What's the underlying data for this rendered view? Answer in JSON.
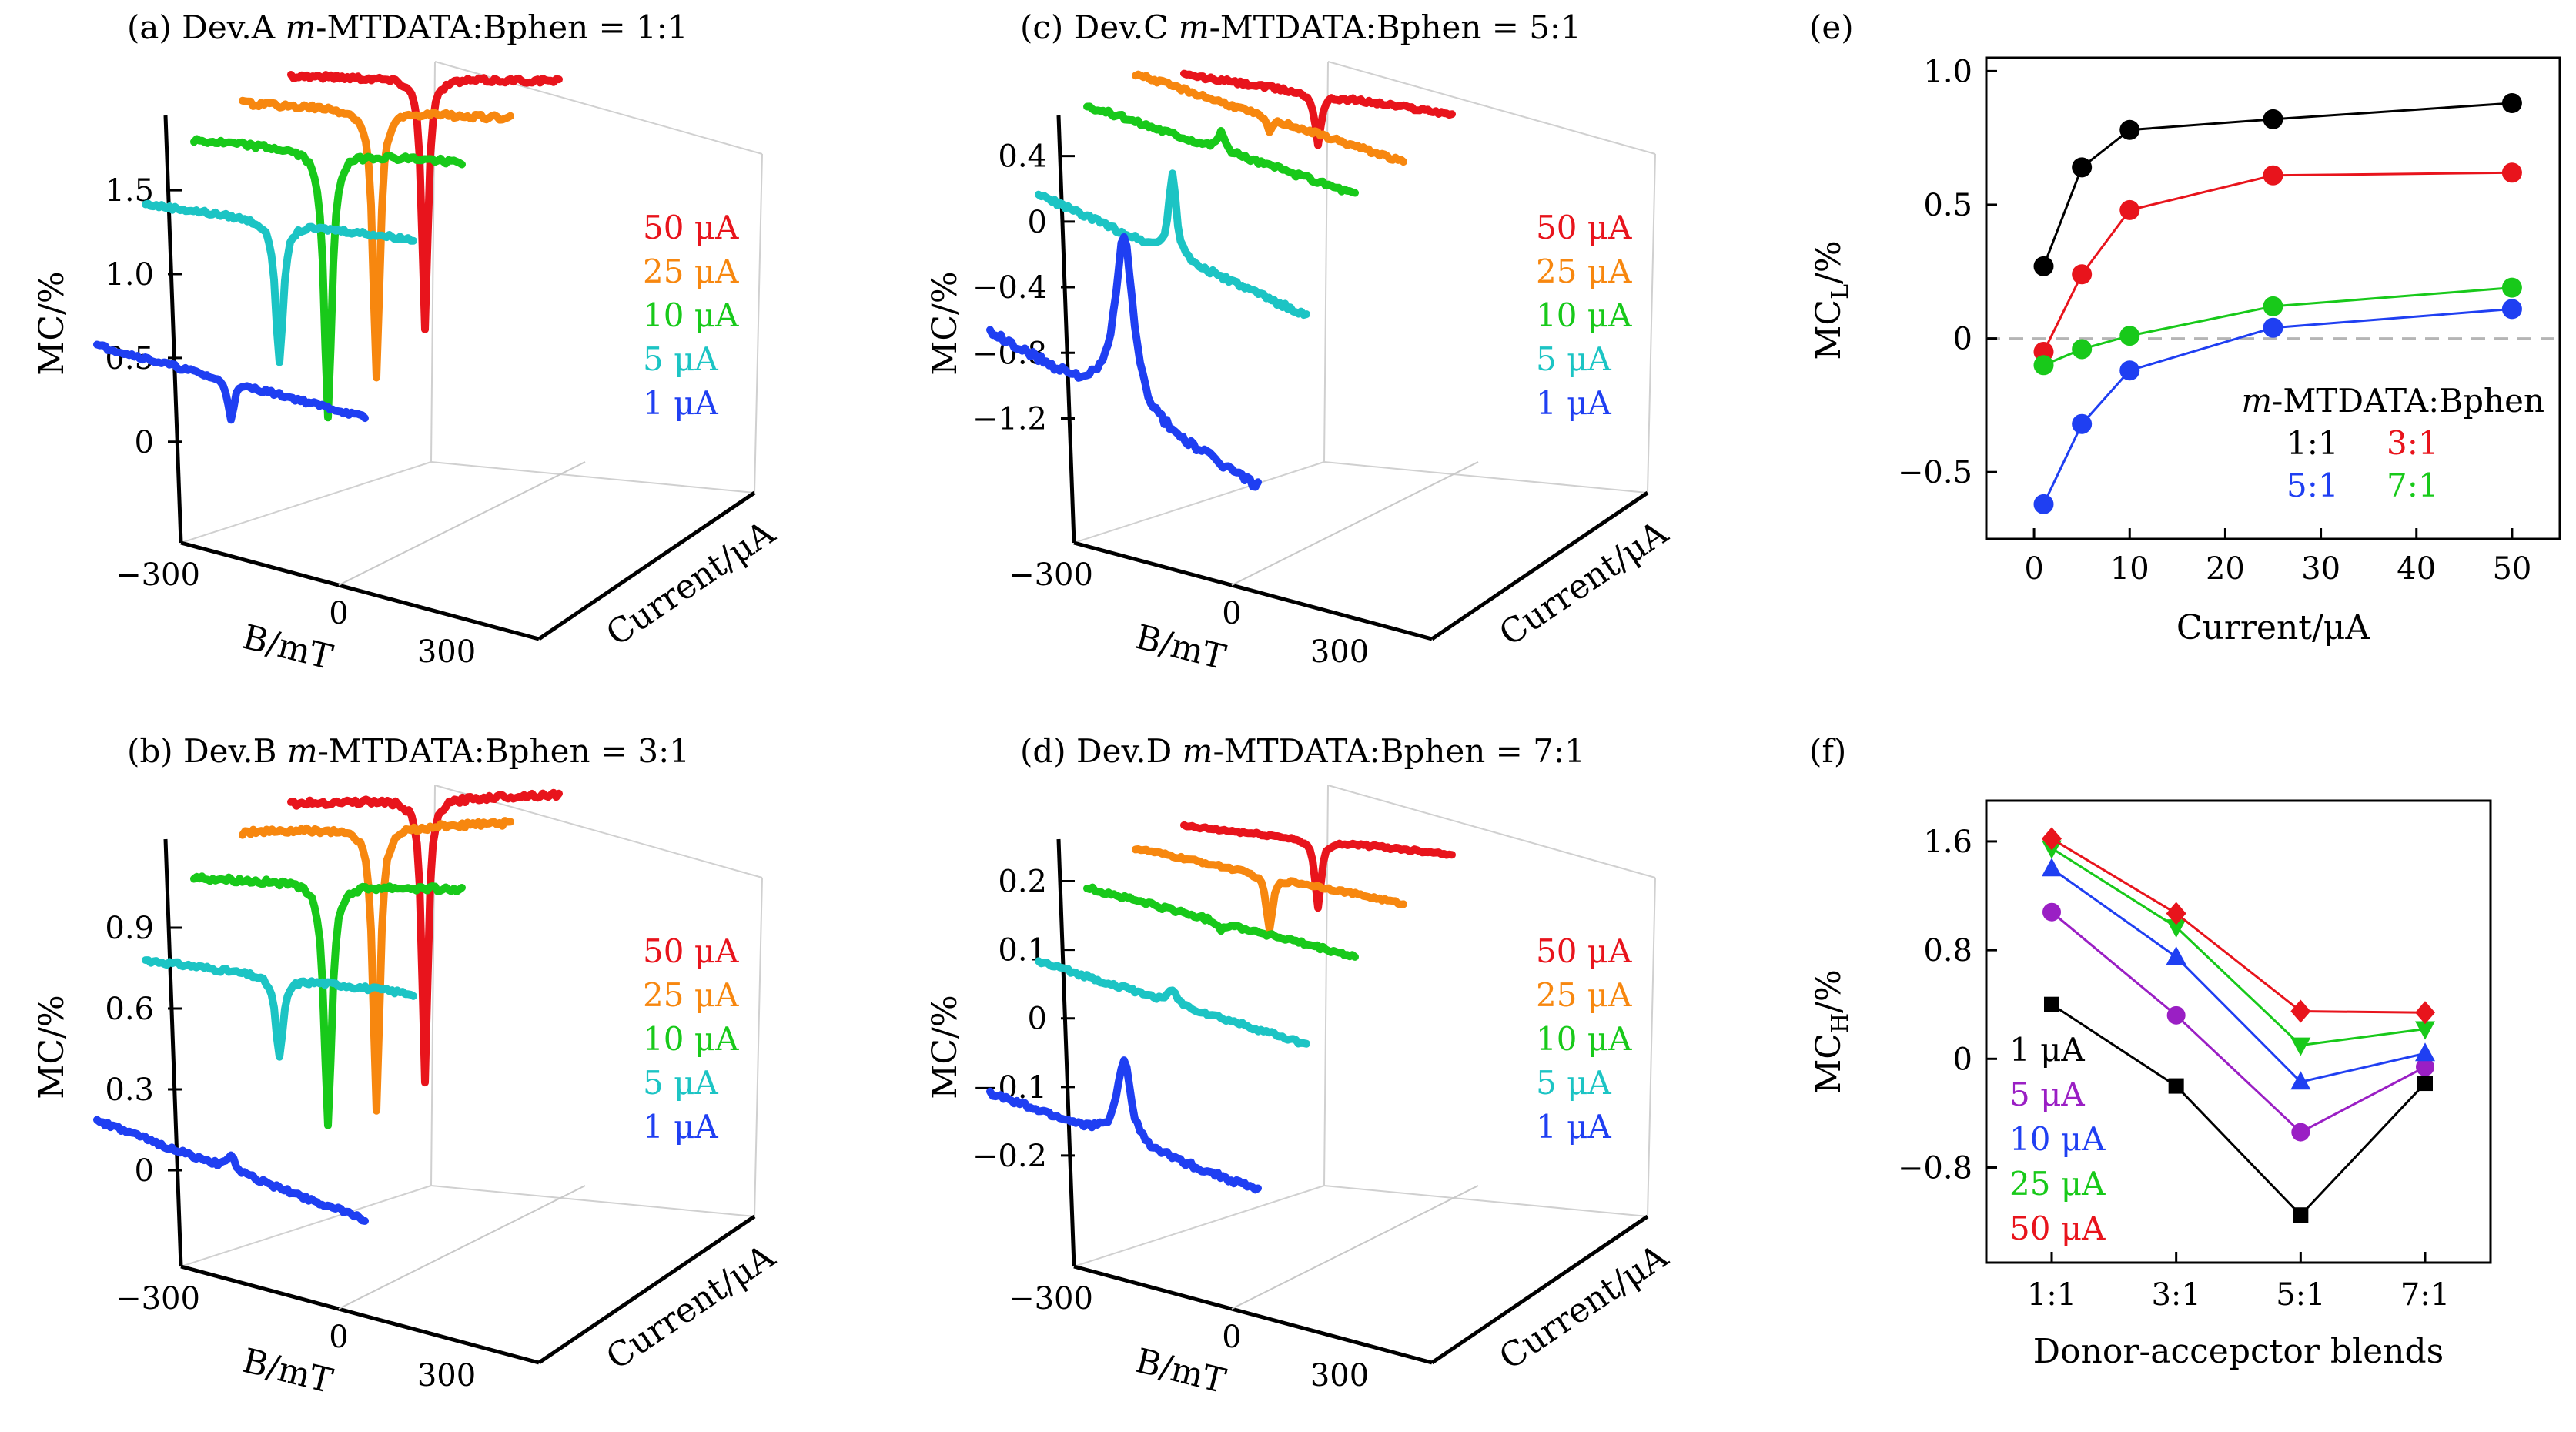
{
  "figure": "MC vs B (3D waterfall) and MC_L / MC_H summaries",
  "colors": {
    "red": "#e8141c",
    "orange": "#f7870f",
    "green": "#18c91a",
    "cyan": "#1cc4c4",
    "blue": "#1f3ff2",
    "black": "#000000",
    "purple": "#9a1fc4"
  },
  "chart_data": [
    {
      "id": "a",
      "type": "line",
      "panel_label": "(a)",
      "device": "Dev.A",
      "blend_prefix": "m",
      "blend_rest": "-MTDATA:Bphen = 1:1",
      "xlabel": "B/mT",
      "ylabel": "MC/%",
      "zlabel": "Current/μA",
      "x_ticks": [
        "−300",
        "0",
        "300"
      ],
      "y_ticks": [
        {
          "v": 0,
          "label": "0"
        },
        {
          "v": 0.5,
          "label": "0.5"
        },
        {
          "v": 1.0,
          "label": "1.0"
        },
        {
          "v": 1.5,
          "label": "1.5"
        }
      ],
      "ylim": [
        -0.35,
        1.9
      ],
      "legend": [
        "50 μA",
        "25 μA",
        "10 μA",
        "5 μA",
        "1 μA"
      ],
      "series": [
        {
          "name": "50 μA",
          "current": 50,
          "color": "red",
          "base": 1.8,
          "dip": 1.5,
          "width": 8,
          "hwing": 0.15,
          "noise": 0.015
        },
        {
          "name": "25 μA",
          "current": 25,
          "color": "orange",
          "base": 1.7,
          "dip": 1.6,
          "width": 9,
          "hwing": 0.12,
          "noise": 0.015
        },
        {
          "name": "10 μA",
          "current": 10,
          "color": "green",
          "base": 1.55,
          "dip": 1.6,
          "width": 10,
          "hwing": 0.1,
          "noise": 0.015
        },
        {
          "name": "5 μA",
          "current": 5,
          "color": "cyan",
          "base": 1.22,
          "dip": 0.85,
          "width": 10,
          "hwing": 0.06,
          "noise": 0.012
        },
        {
          "name": "1 μA",
          "current": 1,
          "color": "blue",
          "base": 0.36,
          "dip": 0.22,
          "width": 8,
          "hwing": -0.05,
          "noise": 0.012
        }
      ]
    },
    {
      "id": "b",
      "type": "line",
      "panel_label": "(b)",
      "device": "Dev.B",
      "blend_prefix": "m",
      "blend_rest": "-MTDATA:Bphen = 3:1",
      "xlabel": "B/mT",
      "ylabel": "MC/%",
      "zlabel": "Current/μA",
      "x_ticks": [
        "−300",
        "0",
        "300"
      ],
      "y_ticks": [
        {
          "v": 0,
          "label": "0"
        },
        {
          "v": 0.3,
          "label": "0.3"
        },
        {
          "v": 0.6,
          "label": "0.6"
        },
        {
          "v": 0.9,
          "label": "0.9"
        }
      ],
      "ylim": [
        -0.2,
        1.2
      ],
      "legend": [
        "50 μA",
        "25 μA",
        "10 μA",
        "5 μA",
        "1 μA"
      ],
      "series": [
        {
          "name": "50 μA",
          "current": 50,
          "color": "red",
          "base": 1.15,
          "dip": 1.05,
          "width": 8,
          "hwing": 0.12,
          "noise": 0.01
        },
        {
          "name": "25 μA",
          "current": 25,
          "color": "orange",
          "base": 1.1,
          "dip": 1.05,
          "width": 9,
          "hwing": 0.12,
          "noise": 0.01
        },
        {
          "name": "10 μA",
          "current": 10,
          "color": "green",
          "base": 0.95,
          "dip": 0.9,
          "width": 10,
          "hwing": 0.08,
          "noise": 0.01
        },
        {
          "name": "5 μA",
          "current": 5,
          "color": "cyan",
          "base": 0.66,
          "dip": 0.3,
          "width": 10,
          "hwing": 0.04,
          "noise": 0.008
        },
        {
          "name": "1 μA",
          "current": 1,
          "color": "blue",
          "base": 0.0,
          "dip": -0.05,
          "width": 12,
          "hwing": -0.08,
          "noise": 0.008
        }
      ]
    },
    {
      "id": "c",
      "type": "line",
      "panel_label": "(c)",
      "device": "Dev.C",
      "blend_prefix": "m",
      "blend_rest": "-MTDATA:Bphen = 5:1",
      "xlabel": "B/mT",
      "ylabel": "MC/%",
      "zlabel": "Current/μA",
      "x_ticks": [
        "−300",
        "0",
        "300"
      ],
      "y_ticks": [
        {
          "v": -1.2,
          "label": "−1.2"
        },
        {
          "v": -0.8,
          "label": "−0.8"
        },
        {
          "v": -0.4,
          "label": "−0.4"
        },
        {
          "v": 0,
          "label": "0"
        },
        {
          "v": 0.4,
          "label": "0.4"
        }
      ],
      "ylim": [
        -1.7,
        0.6
      ],
      "legend": [
        "50 μA",
        "25 μA",
        "10 μA",
        "5 μA",
        "1 μA"
      ],
      "series": [
        {
          "name": "50 μA",
          "current": 50,
          "color": "red",
          "base": 0.4,
          "dip": 0.3,
          "width": 8,
          "hwing": 0.05,
          "noise": 0.012
        },
        {
          "name": "25 μA",
          "current": 25,
          "color": "orange",
          "base": 0.35,
          "dip": 0.08,
          "width": 8,
          "hwing": -0.1,
          "noise": 0.012
        },
        {
          "name": "10 μA",
          "current": 10,
          "color": "green",
          "base": 0.25,
          "dip": -0.12,
          "width": 8,
          "hwing": -0.1,
          "noise": 0.015
        },
        {
          "name": "5 μA",
          "current": 5,
          "color": "cyan",
          "base": -0.3,
          "dip": -0.5,
          "width": 10,
          "hwing": -0.2,
          "noise": 0.015
        },
        {
          "name": "1 μA",
          "current": 1,
          "color": "blue",
          "base": -1.15,
          "dip": -1.05,
          "width": 25,
          "hwing": -0.3,
          "noise": 0.025
        }
      ]
    },
    {
      "id": "d",
      "type": "line",
      "panel_label": "(d)",
      "device": "Dev.D",
      "blend_prefix": "m",
      "blend_rest": "-MTDATA:Bphen = 7:1",
      "xlabel": "B/mT",
      "ylabel": "MC/%",
      "zlabel": "Current/μA",
      "x_ticks": [
        "−300",
        "0",
        "300"
      ],
      "y_ticks": [
        {
          "v": -0.2,
          "label": "−0.2"
        },
        {
          "v": -0.1,
          "label": "−0.1"
        },
        {
          "v": 0,
          "label": "0"
        },
        {
          "v": 0.1,
          "label": "0.1"
        },
        {
          "v": 0.2,
          "label": "0.2"
        }
      ],
      "ylim": [
        -0.3,
        0.25
      ],
      "legend": [
        "50 μA",
        "25 μA",
        "10 μA",
        "5 μA",
        "1 μA"
      ],
      "series": [
        {
          "name": "50 μA",
          "current": 50,
          "color": "red",
          "base": 0.17,
          "dip": 0.1,
          "width": 8,
          "hwing": 0.02,
          "noise": 0.002
        },
        {
          "name": "25 μA",
          "current": 25,
          "color": "orange",
          "base": 0.14,
          "dip": 0.08,
          "width": 8,
          "hwing": 0.0,
          "noise": 0.002
        },
        {
          "name": "10 μA",
          "current": 10,
          "color": "green",
          "base": 0.095,
          "dip": 0.01,
          "width": 8,
          "hwing": -0.01,
          "noise": 0.003
        },
        {
          "name": "5 μA",
          "current": 5,
          "color": "cyan",
          "base": 0.0,
          "dip": -0.02,
          "width": 10,
          "hwing": -0.02,
          "noise": 0.003
        },
        {
          "name": "1 μA",
          "current": 1,
          "color": "blue",
          "base": -0.18,
          "dip": -0.12,
          "width": 18,
          "hwing": -0.03,
          "noise": 0.004
        }
      ]
    },
    {
      "id": "e",
      "type": "line",
      "panel_label": "(e)",
      "xlabel": "Current/μA",
      "ylabel": "MC",
      "ylabel_sub": "L",
      "ylabel_suffix": "/%",
      "x": [
        1,
        5,
        10,
        25,
        50
      ],
      "xlim": [
        -5,
        55
      ],
      "ylim": [
        -0.75,
        1.05
      ],
      "x_ticks": [
        0,
        10,
        20,
        30,
        40,
        50
      ],
      "y_ticks": [
        {
          "v": -0.5,
          "label": "−0.5"
        },
        {
          "v": 0,
          "label": "0"
        },
        {
          "v": 0.5,
          "label": "0.5"
        },
        {
          "v": 1.0,
          "label": "1.0"
        }
      ],
      "reference_line": 0,
      "legend_title": "m-MTDATA:Bphen",
      "series": [
        {
          "name": "1:1",
          "color": "black",
          "values": [
            0.27,
            0.64,
            0.78,
            0.82,
            0.88
          ]
        },
        {
          "name": "3:1",
          "color": "red",
          "values": [
            -0.05,
            0.24,
            0.48,
            0.61,
            0.62
          ]
        },
        {
          "name": "5:1",
          "color": "blue",
          "values": [
            -0.62,
            -0.32,
            -0.12,
            0.04,
            0.11
          ]
        },
        {
          "name": "7:1",
          "color": "green",
          "values": [
            -0.1,
            -0.04,
            0.01,
            0.12,
            0.19
          ]
        }
      ]
    },
    {
      "id": "f",
      "type": "line",
      "panel_label": "(f)",
      "xlabel": "Donor-accepctor blends",
      "ylabel": "MC",
      "ylabel_sub": "H",
      "ylabel_suffix": "/%",
      "categories": [
        "1:1",
        "3:1",
        "5:1",
        "7:1"
      ],
      "ylim": [
        -1.5,
        1.9
      ],
      "y_ticks": [
        {
          "v": -0.8,
          "label": "−0.8"
        },
        {
          "v": 0,
          "label": "0"
        },
        {
          "v": 0.8,
          "label": "0.8"
        },
        {
          "v": 1.6,
          "label": "1.6"
        }
      ],
      "series": [
        {
          "name": "1 μA",
          "color": "black",
          "marker": "square",
          "values": [
            0.4,
            -0.2,
            -1.15,
            -0.18
          ]
        },
        {
          "name": "5 μA",
          "color": "purple",
          "marker": "circle",
          "values": [
            1.08,
            0.32,
            -0.54,
            -0.06
          ]
        },
        {
          "name": "10 μA",
          "color": "blue",
          "marker": "triangle-up",
          "values": [
            1.4,
            0.75,
            -0.17,
            0.04
          ]
        },
        {
          "name": "25 μA",
          "color": "green",
          "marker": "triangle-down",
          "values": [
            1.55,
            0.97,
            0.1,
            0.22
          ]
        },
        {
          "name": "50 μA",
          "color": "red",
          "marker": "diamond",
          "values": [
            1.62,
            1.07,
            0.35,
            0.34
          ]
        }
      ]
    }
  ]
}
